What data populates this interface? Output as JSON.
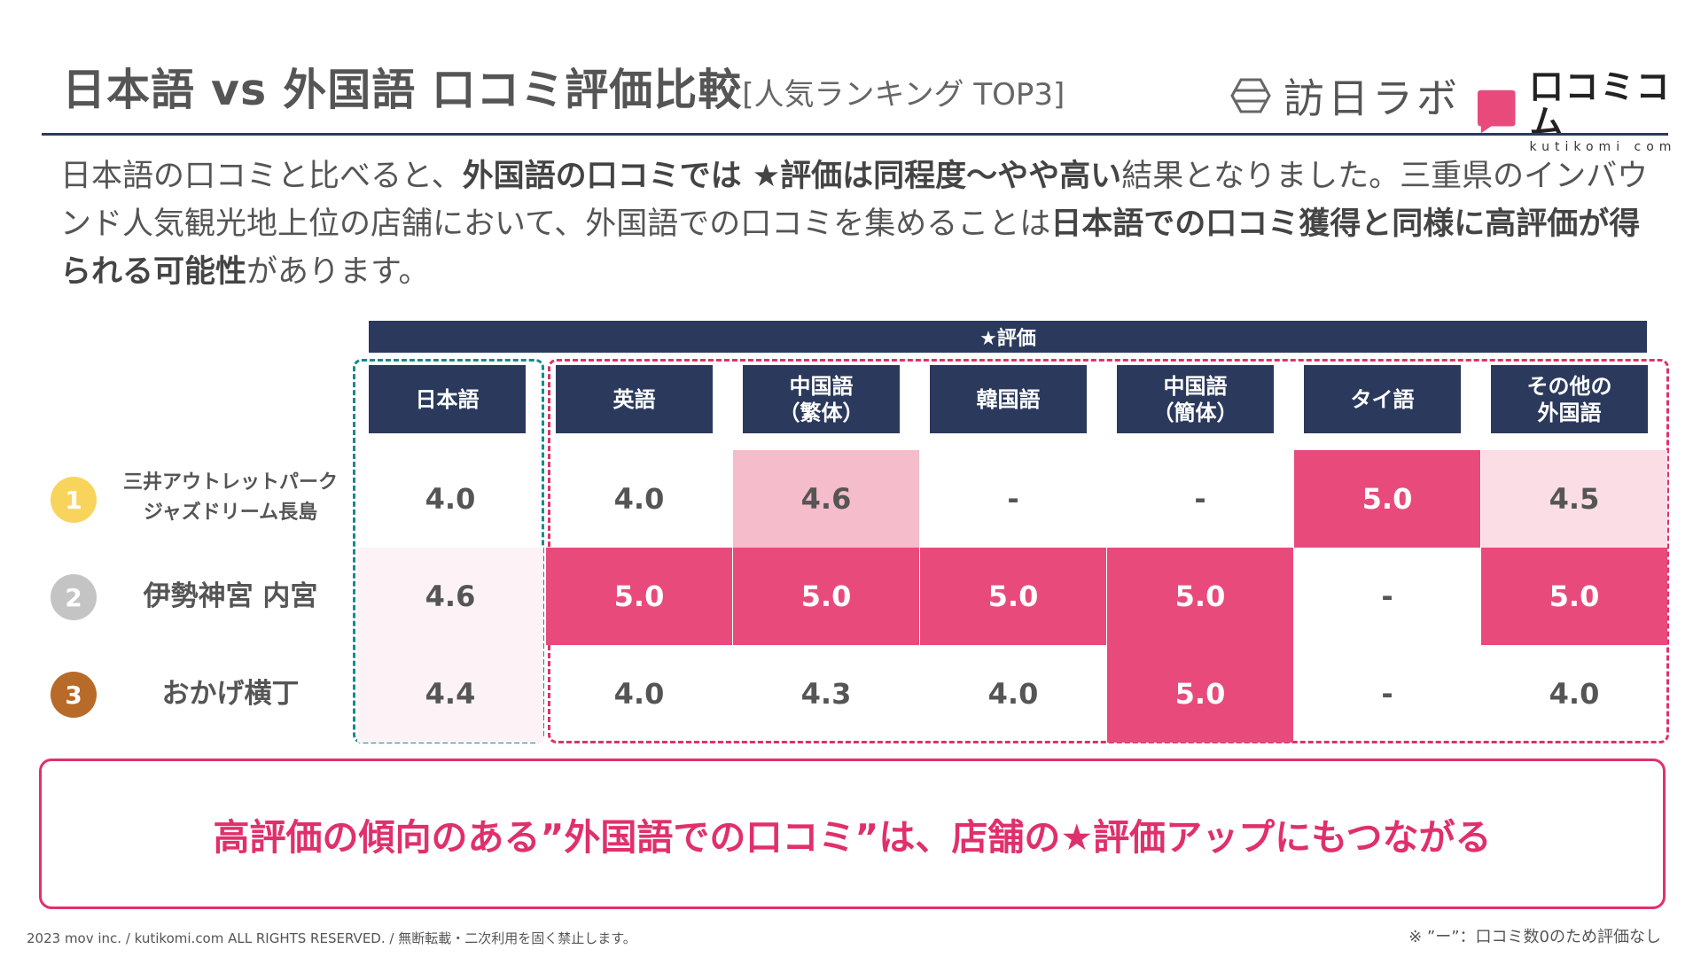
{
  "header": {
    "title": "日本語 vs 外国語 口コミ評価比較",
    "title_suffix": "[人気ランキング TOP3]",
    "logo_houjin": "訪日ラボ",
    "logo_kutikomi_jp": "口コミコム",
    "logo_kutikomi_en": "kutikomi com"
  },
  "lead": {
    "p1": "日本語の口コミと比べると、",
    "b1": "外国語の口コミでは ★評価は同程度〜やや高い",
    "p2": "結果となりました。三重県のインバウンド人気観光地上位の店舗において、外国語での口コミを集めることは",
    "b2": "日本語での口コミ獲得と同様に高評価が得られる可能性",
    "p3": "があります。"
  },
  "table": {
    "rating_header": "★評価",
    "columns": [
      {
        "line1": "日本語",
        "line2": ""
      },
      {
        "line1": "英語",
        "line2": ""
      },
      {
        "line1": "中国語",
        "line2": "（繁体）"
      },
      {
        "line1": "韓国語",
        "line2": ""
      },
      {
        "line1": "中国語",
        "line2": "（簡体）"
      },
      {
        "line1": "タイ語",
        "line2": ""
      },
      {
        "line1": "その他の",
        "line2": "外国語"
      }
    ],
    "rows": [
      {
        "rank": "1",
        "name1": "三井アウトレットパーク",
        "name2": "ジャズドリーム長島",
        "values": [
          "4.0",
          "4.0",
          "4.6",
          "-",
          "-",
          "5.0",
          "4.5"
        ]
      },
      {
        "rank": "2",
        "name1": "伊勢神宮 内宮",
        "name2": "",
        "values": [
          "4.6",
          "5.0",
          "5.0",
          "5.0",
          "5.0",
          "-",
          "5.0"
        ]
      },
      {
        "rank": "3",
        "name1": "おかげ横丁",
        "name2": "",
        "values": [
          "4.4",
          "4.0",
          "4.3",
          "4.0",
          "5.0",
          "-",
          "4.0"
        ]
      }
    ]
  },
  "colors": {
    "navy": "#2b3a5c",
    "pink_high": "#e84a7c",
    "pink_mid": "#f5bccc",
    "pink_light": "#fbdde6",
    "gold": "#f9d45c",
    "silver": "#c4c4c4",
    "bronze": "#b86a28"
  },
  "callout": "高評価の傾向のある”外国語での口コミ”は、店舗の★評価アップにもつながる",
  "footer": {
    "copyright": "2023 mov inc. / kutikomi.com ALL RIGHTS RESERVED. / 無断転載・二次利用を固く禁止します。",
    "note": "※ ”ー”：口コミ数0のため評価なし"
  }
}
